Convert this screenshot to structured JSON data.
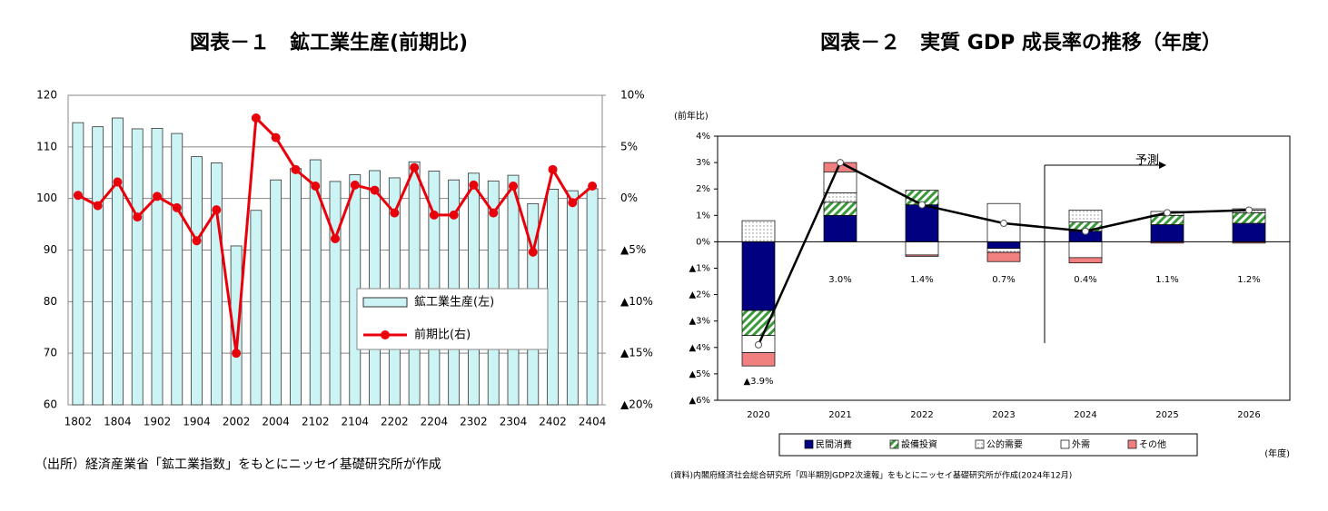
{
  "chart_data": [
    {
      "type": "bar_line",
      "title": "図表－１　鉱工業生産(前期比)",
      "note": "（出所）経済産業省「鉱工業指数」をもとにニッセイ基礎研究所が作成",
      "categories": [
        "1802",
        null,
        "1804",
        null,
        "1902",
        null,
        "1904",
        null,
        "2002",
        null,
        "2004",
        null,
        "2102",
        null,
        "2104",
        null,
        "2202",
        null,
        "2204",
        null,
        "2302",
        null,
        "2304",
        null,
        "2402",
        null,
        "2404"
      ],
      "series": [
        {
          "name": "鉱工業生産(左)",
          "type": "bar",
          "color": "#ccf4f4",
          "values": [
            114.7,
            113.9,
            115.6,
            113.5,
            113.6,
            112.6,
            108.1,
            106.9,
            90.8,
            97.7,
            103.6,
            105.8,
            107.5,
            103.3,
            104.6,
            105.4,
            104.0,
            107.1,
            105.3,
            103.6,
            104.9,
            103.4,
            104.5,
            99.0,
            101.8,
            101.5,
            101.9
          ]
        },
        {
          "name": "前期比(右)",
          "type": "line",
          "axis": "y2",
          "color": "#e8000b",
          "values": [
            0.3,
            -0.7,
            1.6,
            -1.8,
            0.2,
            -0.9,
            -4.1,
            -1.1,
            -15.0,
            7.8,
            5.9,
            2.8,
            1.2,
            -3.9,
            1.3,
            0.8,
            -1.4,
            3.0,
            -1.6,
            -1.6,
            1.3,
            -1.4,
            1.2,
            -5.2,
            2.8,
            -0.4,
            1.2
          ]
        }
      ],
      "ylim": [
        60,
        120
      ],
      "yticks": [
        60,
        70,
        80,
        90,
        100,
        110,
        120
      ],
      "y2lim": [
        -20,
        10
      ],
      "y2ticks": [
        {
          "value": -20,
          "label": "▲20%"
        },
        {
          "value": -15,
          "label": "▲15%"
        },
        {
          "value": -10,
          "label": "▲10%"
        },
        {
          "value": -5,
          "label": "▲5%"
        },
        {
          "value": 0,
          "label": "0%"
        },
        {
          "value": 5,
          "label": "5%"
        },
        {
          "value": 10,
          "label": "10%"
        }
      ],
      "grid": true,
      "legend": "lower right"
    },
    {
      "type": "stacked_bar",
      "title": "図表－２　実質 GDP 成長率の推移（年度）",
      "y_label": "(前年比)",
      "x_label": "(年度)",
      "annotation": "予測",
      "note": "(資料)内閣府経済社会総合研究所「四半期別GDP2次速報」をもとにニッセイ基礎研究所が作成(2024年12月)",
      "categories": [
        "2020",
        "2021",
        "2022",
        "2023",
        "2024",
        "2025",
        "2026"
      ],
      "series": [
        {
          "name": "民間消費",
          "color": "#000080",
          "pattern": "solid",
          "values": [
            -2.6,
            1.0,
            1.4,
            -0.25,
            0.4,
            0.65,
            0.7
          ]
        },
        {
          "name": "設備投資",
          "color": "#3a9a3a",
          "pattern": "hatch",
          "values": [
            -0.95,
            0.5,
            0.55,
            0.0,
            0.35,
            0.35,
            0.4
          ]
        },
        {
          "name": "公的需要",
          "color": "#ffffff",
          "pattern": "dots",
          "values": [
            0.8,
            0.35,
            0.0,
            -0.15,
            0.45,
            0.15,
            0.1
          ]
        },
        {
          "name": "外需",
          "color": "#ffffff",
          "pattern": "solid",
          "values": [
            -0.65,
            0.8,
            -0.5,
            1.45,
            -0.6,
            0.0,
            0.05
          ]
        },
        {
          "name": "その他",
          "color": "#f08080",
          "pattern": "solid",
          "values": [
            -0.5,
            0.35,
            -0.05,
            -0.35,
            -0.2,
            -0.05,
            -0.05
          ]
        }
      ],
      "total": {
        "color": "#000000",
        "values": [
          -3.9,
          3.0,
          1.4,
          0.7,
          0.4,
          1.1,
          1.2
        ],
        "value_labels": [
          "▲3.9%",
          "3.0%",
          "1.4%",
          "0.7%",
          "0.4%",
          "1.1%",
          "1.2%"
        ]
      },
      "ylim": [
        -6,
        4
      ],
      "yticks": [
        {
          "value": -6,
          "label": "▲6%"
        },
        {
          "value": -5,
          "label": "▲5%"
        },
        {
          "value": -4,
          "label": "▲4%"
        },
        {
          "value": -3,
          "label": "▲3%"
        },
        {
          "value": -2,
          "label": "▲2%"
        },
        {
          "value": -1,
          "label": "▲1%"
        },
        {
          "value": 0,
          "label": "0%"
        },
        {
          "value": 1,
          "label": "1%"
        },
        {
          "value": 2,
          "label": "2%"
        },
        {
          "value": 3,
          "label": "3%"
        },
        {
          "value": 4,
          "label": "4%"
        }
      ],
      "legend": "bottom"
    }
  ]
}
